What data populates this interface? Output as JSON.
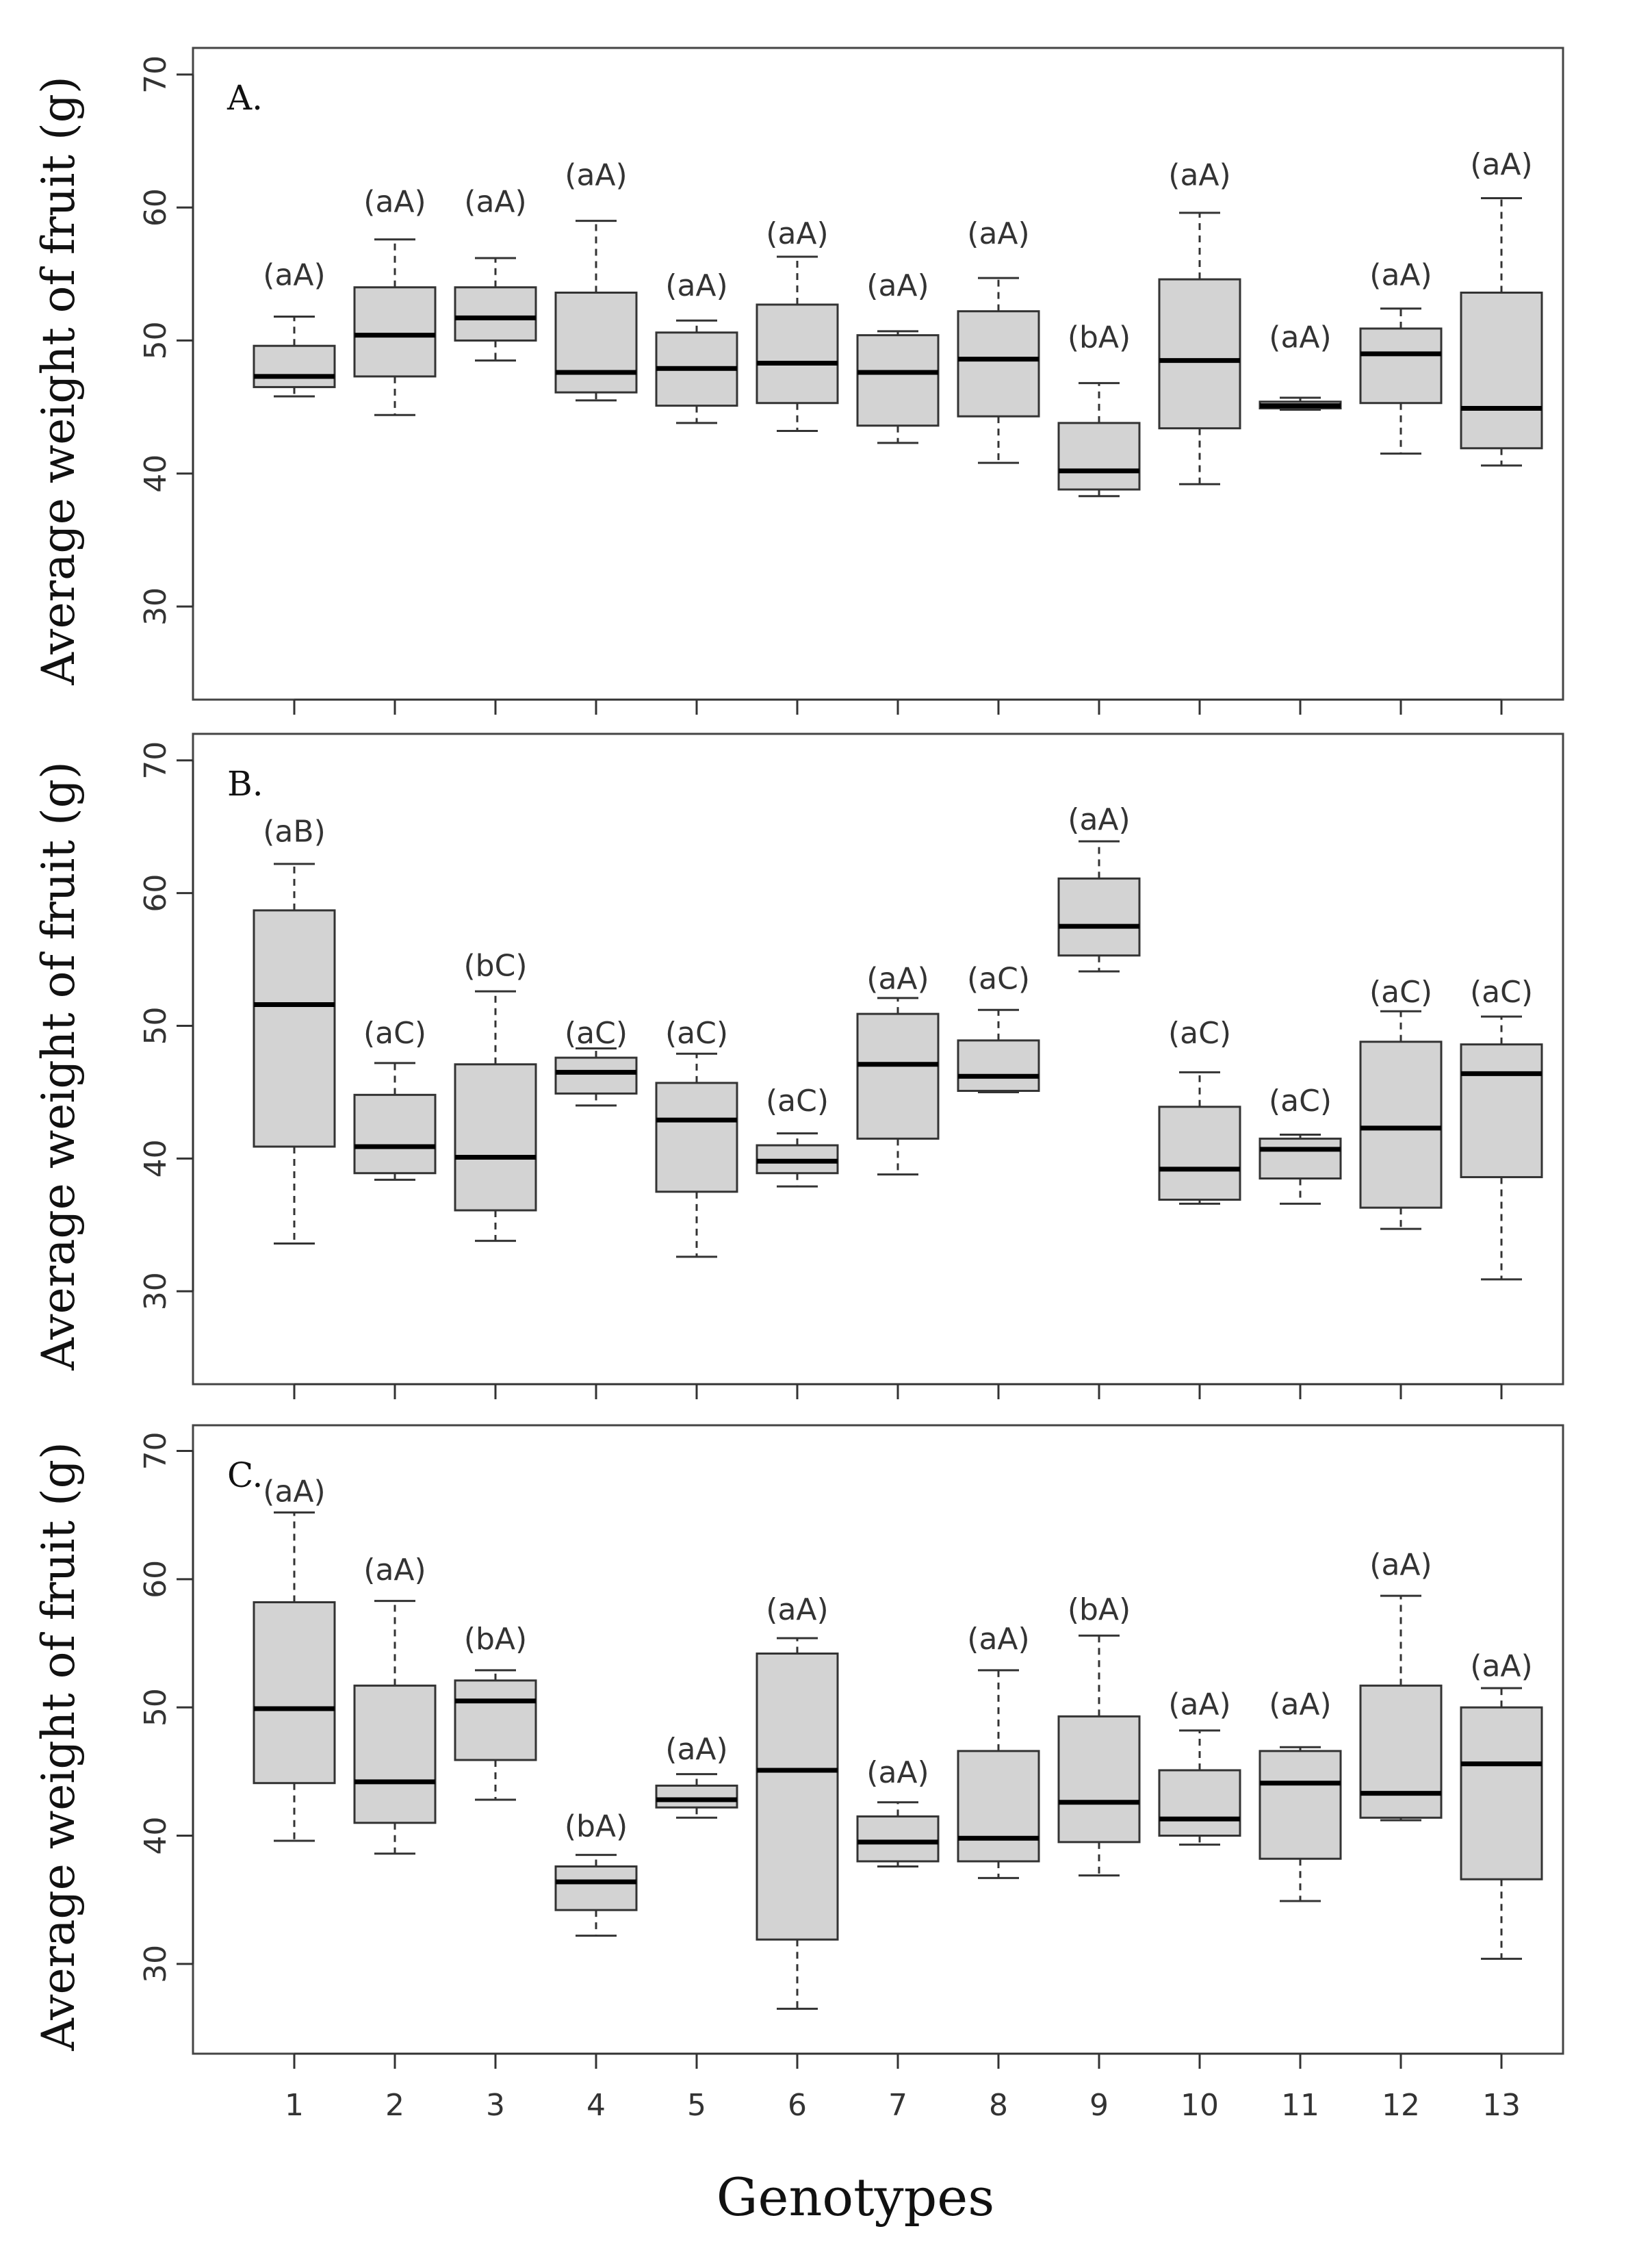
{
  "chart_data": {
    "type": "box",
    "xlabel": "Genotypes",
    "categories": [
      "1",
      "2",
      "3",
      "4",
      "5",
      "6",
      "7",
      "8",
      "9",
      "10",
      "11",
      "12",
      "13"
    ],
    "ylim": [
      23,
      72
    ],
    "yticks": [
      30,
      40,
      50,
      60,
      70
    ],
    "panels": [
      {
        "label": "A.",
        "ylabel": "Average weight of fruit (g)",
        "boxes": [
          {
            "min": 45.8,
            "q1": 46.5,
            "median": 47.3,
            "q3": 49.6,
            "max": 51.8,
            "letters": "(aA)",
            "letters_y": 55.0
          },
          {
            "min": 44.4,
            "q1": 47.3,
            "median": 50.4,
            "q3": 54.0,
            "max": 57.6,
            "letters": "(aA)",
            "letters_y": 60.5
          },
          {
            "min": 48.5,
            "q1": 50.0,
            "median": 51.7,
            "q3": 54.0,
            "max": 56.2,
            "letters": "(aA)",
            "letters_y": 60.5
          },
          {
            "min": 45.5,
            "q1": 46.1,
            "median": 47.6,
            "q3": 53.6,
            "max": 59.0,
            "letters": "(aA)",
            "letters_y": 62.5
          },
          {
            "min": 43.8,
            "q1": 45.1,
            "median": 47.9,
            "q3": 50.6,
            "max": 51.5,
            "letters": "(aA)",
            "letters_y": 54.2
          },
          {
            "min": 43.2,
            "q1": 45.3,
            "median": 48.3,
            "q3": 52.7,
            "max": 56.3,
            "letters": "(aA)",
            "letters_y": 58.1
          },
          {
            "min": 42.3,
            "q1": 43.6,
            "median": 47.6,
            "q3": 50.4,
            "max": 50.7,
            "letters": "(aA)",
            "letters_y": 54.2
          },
          {
            "min": 40.8,
            "q1": 44.3,
            "median": 48.6,
            "q3": 52.2,
            "max": 54.7,
            "letters": "(aA)",
            "letters_y": 58.1
          },
          {
            "min": 38.3,
            "q1": 38.8,
            "median": 40.2,
            "q3": 43.8,
            "max": 46.8,
            "letters": "(bA)",
            "letters_y": 50.3
          },
          {
            "min": 39.2,
            "q1": 43.4,
            "median": 48.5,
            "q3": 54.6,
            "max": 59.6,
            "letters": "(aA)",
            "letters_y": 62.5
          },
          {
            "min": 44.8,
            "q1": 44.9,
            "median": 45.1,
            "q3": 45.4,
            "max": 45.7,
            "letters": "(aA)",
            "letters_y": 50.3
          },
          {
            "min": 41.5,
            "q1": 45.3,
            "median": 49.0,
            "q3": 50.9,
            "max": 52.4,
            "letters": "(aA)",
            "letters_y": 55.0
          },
          {
            "min": 40.6,
            "q1": 41.9,
            "median": 44.9,
            "q3": 53.6,
            "max": 60.7,
            "letters": "(aA)",
            "letters_y": 63.3
          }
        ]
      },
      {
        "label": "B.",
        "ylabel": "Average weight of fruit (g)",
        "boxes": [
          {
            "min": 33.6,
            "q1": 40.9,
            "median": 51.6,
            "q3": 58.7,
            "max": 62.2,
            "letters": "(aB)",
            "letters_y": 64.7
          },
          {
            "min": 38.4,
            "q1": 38.9,
            "median": 40.9,
            "q3": 44.8,
            "max": 47.2,
            "letters": "(aC)",
            "letters_y": 49.5
          },
          {
            "min": 33.8,
            "q1": 36.1,
            "median": 40.1,
            "q3": 47.1,
            "max": 52.6,
            "letters": "(bC)",
            "letters_y": 54.6
          },
          {
            "min": 44.0,
            "q1": 44.9,
            "median": 46.5,
            "q3": 47.6,
            "max": 48.3,
            "letters": "(aC)",
            "letters_y": 49.5
          },
          {
            "min": 32.6,
            "q1": 37.5,
            "median": 42.9,
            "q3": 45.7,
            "max": 47.9,
            "letters": "(aC)",
            "letters_y": 49.5
          },
          {
            "min": 37.9,
            "q1": 38.9,
            "median": 39.8,
            "q3": 41.0,
            "max": 41.9,
            "letters": "(aC)",
            "letters_y": 44.4
          },
          {
            "min": 38.8,
            "q1": 41.5,
            "median": 47.1,
            "q3": 50.9,
            "max": 52.1,
            "letters": "(aA)",
            "letters_y": 53.6
          },
          {
            "min": 45.0,
            "q1": 45.1,
            "median": 46.2,
            "q3": 48.9,
            "max": 51.2,
            "letters": "(aC)",
            "letters_y": 53.6
          },
          {
            "min": 54.1,
            "q1": 55.3,
            "median": 57.5,
            "q3": 61.1,
            "max": 63.9,
            "letters": "(aA)",
            "letters_y": 65.6
          },
          {
            "min": 36.6,
            "q1": 36.9,
            "median": 39.2,
            "q3": 43.9,
            "max": 46.5,
            "letters": "(aC)",
            "letters_y": 49.5
          },
          {
            "min": 36.6,
            "q1": 38.5,
            "median": 40.7,
            "q3": 41.5,
            "max": 41.8,
            "letters": "(aC)",
            "letters_y": 44.4
          },
          {
            "min": 34.7,
            "q1": 36.3,
            "median": 42.3,
            "q3": 48.8,
            "max": 51.1,
            "letters": "(aC)",
            "letters_y": 52.6
          },
          {
            "min": 30.9,
            "q1": 38.6,
            "median": 46.4,
            "q3": 48.6,
            "max": 50.7,
            "letters": "(aC)",
            "letters_y": 52.6
          }
        ]
      },
      {
        "label": "C.",
        "ylabel": "Average weight of fruit (g)",
        "boxes": [
          {
            "min": 39.6,
            "q1": 44.1,
            "median": 49.9,
            "q3": 58.2,
            "max": 65.2,
            "letters": "(aA)",
            "letters_y": 66.9
          },
          {
            "min": 38.6,
            "q1": 41.0,
            "median": 44.2,
            "q3": 51.7,
            "max": 58.3,
            "letters": "(aA)",
            "letters_y": 60.8
          },
          {
            "min": 42.8,
            "q1": 45.9,
            "median": 50.5,
            "q3": 52.1,
            "max": 52.9,
            "letters": "(bA)",
            "letters_y": 55.4
          },
          {
            "min": 32.2,
            "q1": 34.2,
            "median": 36.4,
            "q3": 37.6,
            "max": 38.5,
            "letters": "(bA)",
            "letters_y": 40.8
          },
          {
            "min": 41.4,
            "q1": 42.2,
            "median": 42.8,
            "q3": 43.9,
            "max": 44.8,
            "letters": "(aA)",
            "letters_y": 46.8
          },
          {
            "min": 26.5,
            "q1": 31.9,
            "median": 45.1,
            "q3": 54.2,
            "max": 55.4,
            "letters": "(aA)",
            "letters_y": 57.7
          },
          {
            "min": 37.6,
            "q1": 38.0,
            "median": 39.5,
            "q3": 41.5,
            "max": 42.6,
            "letters": "(aA)",
            "letters_y": 45.0
          },
          {
            "min": 36.7,
            "q1": 38.0,
            "median": 39.8,
            "q3": 46.6,
            "max": 52.9,
            "letters": "(aA)",
            "letters_y": 55.4
          },
          {
            "min": 36.9,
            "q1": 39.5,
            "median": 42.6,
            "q3": 49.3,
            "max": 55.6,
            "letters": "(bA)",
            "letters_y": 57.7
          },
          {
            "min": 39.3,
            "q1": 40.0,
            "median": 41.3,
            "q3": 45.1,
            "max": 48.2,
            "letters": "(aA)",
            "letters_y": 50.3
          },
          {
            "min": 34.9,
            "q1": 38.2,
            "median": 44.1,
            "q3": 46.6,
            "max": 46.9,
            "letters": "(aA)",
            "letters_y": 50.3
          },
          {
            "min": 41.2,
            "q1": 41.4,
            "median": 43.3,
            "q3": 51.7,
            "max": 58.7,
            "letters": "(aA)",
            "letters_y": 61.2
          },
          {
            "min": 30.4,
            "q1": 36.6,
            "median": 45.6,
            "q3": 50.0,
            "max": 51.5,
            "letters": "(aA)",
            "letters_y": 53.3
          }
        ]
      }
    ]
  }
}
